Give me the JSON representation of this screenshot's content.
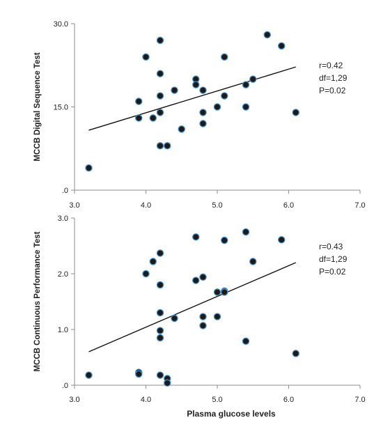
{
  "chart_data": [
    {
      "type": "scatter",
      "ylabel": "MCCB Digital Sequence Test",
      "xlabel": "",
      "xlim": [
        3.0,
        7.0
      ],
      "ylim": [
        0,
        30
      ],
      "x_ticks": [
        "3.0",
        "4.0",
        "5.0",
        "6.0",
        "7.0"
      ],
      "y_ticks": [
        ".0",
        "15.0",
        "30.0"
      ],
      "y_tick_values": [
        0,
        15,
        30
      ],
      "points": [
        [
          3.2,
          4
        ],
        [
          3.9,
          16
        ],
        [
          3.9,
          13
        ],
        [
          4.0,
          24
        ],
        [
          4.1,
          13
        ],
        [
          4.2,
          27
        ],
        [
          4.2,
          21
        ],
        [
          4.2,
          17
        ],
        [
          4.2,
          14
        ],
        [
          4.2,
          8
        ],
        [
          4.3,
          8
        ],
        [
          4.4,
          18
        ],
        [
          4.5,
          11
        ],
        [
          4.7,
          20
        ],
        [
          4.7,
          19
        ],
        [
          4.8,
          18
        ],
        [
          4.8,
          14
        ],
        [
          4.8,
          12
        ],
        [
          5.0,
          15
        ],
        [
          5.1,
          24
        ],
        [
          5.1,
          17
        ],
        [
          5.4,
          19
        ],
        [
          5.4,
          15
        ],
        [
          5.5,
          20
        ],
        [
          5.7,
          28
        ],
        [
          5.9,
          26
        ],
        [
          6.1,
          14
        ]
      ],
      "trendline": {
        "x": [
          3.2,
          6.1
        ],
        "y": [
          10.8,
          22.2
        ]
      },
      "stats": [
        "r=0.42",
        "df=1,29",
        "P=0.02"
      ],
      "grid": false
    },
    {
      "type": "scatter",
      "ylabel": "MCCB Continuous Performance  Test",
      "xlabel": "Plasma glucose levels",
      "xlim": [
        3.0,
        7.0
      ],
      "ylim": [
        0,
        3
      ],
      "x_ticks": [
        "3.0",
        "4.0",
        "5.0",
        "6.0",
        "7.0"
      ],
      "y_ticks": [
        ".0",
        "1.0",
        "2.0",
        "3.0"
      ],
      "y_tick_values": [
        0,
        1,
        2,
        3
      ],
      "points": [
        [
          3.2,
          0.18
        ],
        [
          3.9,
          0.23
        ],
        [
          3.9,
          0.2
        ],
        [
          4.0,
          2.0
        ],
        [
          4.1,
          2.22
        ],
        [
          4.2,
          2.37
        ],
        [
          4.2,
          1.8
        ],
        [
          4.2,
          1.3
        ],
        [
          4.2,
          0.98
        ],
        [
          4.2,
          0.85
        ],
        [
          4.2,
          0.18
        ],
        [
          4.3,
          0.12
        ],
        [
          4.3,
          0.04
        ],
        [
          4.4,
          1.2
        ],
        [
          4.7,
          2.66
        ],
        [
          4.7,
          1.88
        ],
        [
          4.8,
          1.94
        ],
        [
          4.8,
          1.23
        ],
        [
          4.8,
          1.07
        ],
        [
          5.0,
          1.67
        ],
        [
          5.0,
          1.23
        ],
        [
          5.1,
          2.6
        ],
        [
          5.1,
          1.69
        ],
        [
          5.1,
          1.67
        ],
        [
          5.4,
          2.75
        ],
        [
          5.4,
          0.79
        ],
        [
          5.5,
          2.22
        ],
        [
          5.9,
          2.61
        ],
        [
          6.1,
          0.57
        ]
      ],
      "trendline": {
        "x": [
          3.2,
          6.1
        ],
        "y": [
          0.6,
          2.2
        ]
      },
      "stats": [
        "r=0.43",
        "df=1,29",
        "P=0.02"
      ],
      "grid": false
    }
  ],
  "colors": {
    "marker_fill": "#1b1b1b",
    "marker_edge": "#4a8fc4",
    "axis": "#8c8c8c",
    "text": "#222222",
    "trendline": "#111111"
  }
}
